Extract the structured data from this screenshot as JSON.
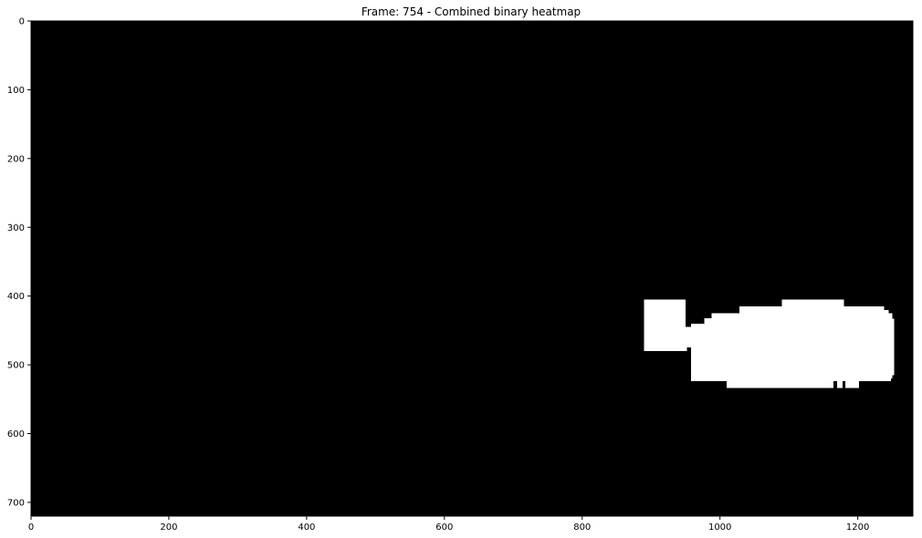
{
  "chart_data": {
    "type": "heatmap",
    "title": "Frame: 754 - Combined binary heatmap",
    "xlabel": "",
    "ylabel": "",
    "xlim": [
      0,
      1280
    ],
    "ylim": [
      720,
      0
    ],
    "xticks": [
      0,
      200,
      400,
      600,
      800,
      1000,
      1200
    ],
    "yticks": [
      0,
      100,
      200,
      300,
      400,
      500,
      600,
      700
    ],
    "grid": false,
    "colormap": "gray",
    "background_value": 0,
    "colors": {
      "background": "#000000",
      "hot": "#ffffff"
    },
    "hot_regions": [
      {
        "x": [
          890,
          950
        ],
        "y": [
          405,
          475
        ]
      },
      {
        "x": [
          890,
          952
        ],
        "y": [
          473,
          480
        ]
      },
      {
        "x": [
          950,
          992
        ],
        "y": [
          445,
          475
        ]
      },
      {
        "x": [
          958,
          1250
        ],
        "y": [
          440,
          520
        ]
      },
      {
        "x": [
          977,
          1250
        ],
        "y": [
          432,
          445
        ]
      },
      {
        "x": [
          988,
          1250
        ],
        "y": [
          425,
          440
        ]
      },
      {
        "x": [
          1028,
          1238
        ],
        "y": [
          415,
          430
        ]
      },
      {
        "x": [
          1090,
          1180
        ],
        "y": [
          405,
          420
        ]
      },
      {
        "x": [
          1225,
          1245
        ],
        "y": [
          420,
          435
        ]
      },
      {
        "x": [
          1238,
          1253
        ],
        "y": [
          433,
          515
        ]
      },
      {
        "x": [
          958,
          1248
        ],
        "y": [
          515,
          524
        ]
      },
      {
        "x": [
          1010,
          1165
        ],
        "y": [
          520,
          534
        ]
      },
      {
        "x": [
          1170,
          1178
        ],
        "y": [
          520,
          534
        ]
      },
      {
        "x": [
          1182,
          1202
        ],
        "y": [
          520,
          534
        ]
      }
    ]
  }
}
